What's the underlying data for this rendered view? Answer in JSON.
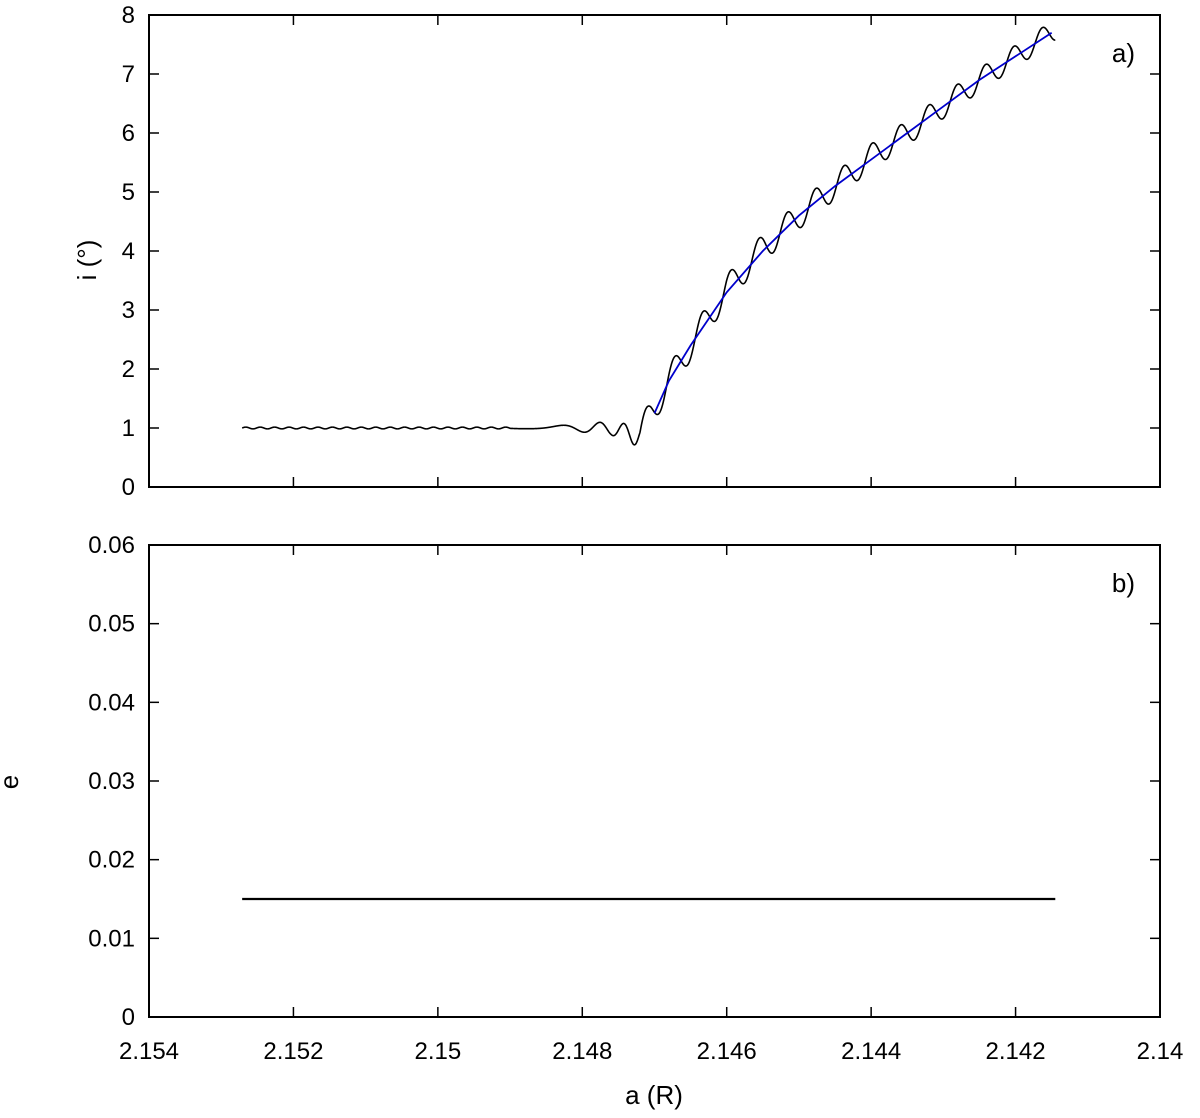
{
  "chart_data": [
    {
      "type": "line",
      "panel_label": "a)",
      "xlabel": "",
      "ylabel": "i (°)",
      "xlim": [
        2.154,
        2.14
      ],
      "ylim": [
        0,
        8
      ],
      "x_reversed": true,
      "x_ticks": [
        2.154,
        2.152,
        2.15,
        2.148,
        2.146,
        2.144,
        2.142,
        2.14
      ],
      "x_tick_labels": [
        "2.154",
        "2.152",
        "2.15",
        "2.148",
        "2.146",
        "2.144",
        "2.142",
        "2.14"
      ],
      "x_tick_labels_shown": false,
      "y_ticks": [
        0,
        1,
        2,
        3,
        4,
        5,
        6,
        7,
        8
      ],
      "y_tick_labels": [
        "0",
        "1",
        "2",
        "3",
        "4",
        "5",
        "6",
        "7",
        "8"
      ],
      "grid": false,
      "series": [
        {
          "color": "#000000",
          "style": "oscillating",
          "description_points": {
            "x": [
              2.15271,
              2.1485,
              2.1476,
              2.1472,
              2.14705,
              2.1468,
              2.1465,
              2.146,
              2.1455,
              2.145,
              2.1445,
              2.144,
              2.1435,
              2.143,
              2.1425,
              2.142,
              2.14145
            ],
            "y": [
              1.0,
              1.0,
              1.0,
              0.85,
              1.25,
              1.8,
              2.4,
              3.35,
              4.05,
              4.6,
              5.1,
              5.6,
              6.0,
              6.45,
              6.9,
              7.3,
              7.75
            ]
          }
        },
        {
          "color": "#0000cc",
          "style": "smooth",
          "x": [
            2.147,
            2.1468,
            2.1465,
            2.146,
            2.1455,
            2.145,
            2.1445,
            2.144,
            2.1435,
            2.143,
            2.1425,
            2.142,
            2.1415
          ],
          "y": [
            1.25,
            1.8,
            2.4,
            3.3,
            4.0,
            4.6,
            5.1,
            5.55,
            6.0,
            6.45,
            6.9,
            7.3,
            7.7
          ]
        }
      ]
    },
    {
      "type": "line",
      "panel_label": "b)",
      "xlabel": "a (R)",
      "ylabel": "e",
      "xlim": [
        2.154,
        2.14
      ],
      "ylim": [
        0,
        0.06
      ],
      "x_reversed": true,
      "x_ticks": [
        2.154,
        2.152,
        2.15,
        2.148,
        2.146,
        2.144,
        2.142,
        2.14
      ],
      "x_tick_labels": [
        "2.154",
        "2.152",
        "2.15",
        "2.148",
        "2.146",
        "2.144",
        "2.142",
        "2.14"
      ],
      "y_ticks": [
        0,
        0.01,
        0.02,
        0.03,
        0.04,
        0.05,
        0.06
      ],
      "y_tick_labels": [
        "0",
        "0.01",
        "0.02",
        "0.03",
        "0.04",
        "0.05",
        "0.06"
      ],
      "grid": false,
      "series": [
        {
          "color": "#000000",
          "style": "flat",
          "x": [
            2.15271,
            2.14145
          ],
          "y": [
            0.015,
            0.015
          ]
        }
      ]
    }
  ]
}
